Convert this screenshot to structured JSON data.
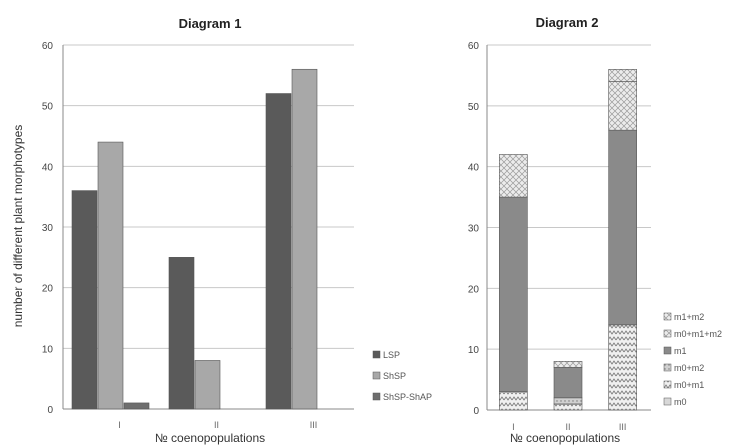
{
  "chart_data": [
    {
      "type": "bar",
      "title": "Diagram 1",
      "xlabel": "№ coenopopulations",
      "ylabel": "number of different plant morphotypes",
      "ylim": [
        0,
        60
      ],
      "yticks": [
        "0",
        "10",
        "20",
        "30",
        "40",
        "50",
        "60"
      ],
      "grid": true,
      "legend_position": "bottom-right",
      "categories": [
        "I",
        "II",
        "III"
      ],
      "series": [
        {
          "name": "LSP",
          "values": [
            36,
            25,
            52
          ],
          "color": "#5a5a5a"
        },
        {
          "name": "ShSP",
          "values": [
            44,
            8,
            56
          ],
          "color": "#a8a8a8"
        },
        {
          "name": "ShSP-ShAP",
          "values": [
            1,
            0,
            0
          ],
          "color": "#6e6e6e"
        }
      ]
    },
    {
      "type": "stacked-bar",
      "title": "Diagram 2",
      "xlabel": "№ coenopopulations",
      "ylim": [
        0,
        60
      ],
      "yticks": [
        "0",
        "10",
        "20",
        "30",
        "40",
        "50",
        "60"
      ],
      "grid": true,
      "legend_position": "right",
      "categories": [
        "I",
        "II",
        "III"
      ],
      "series": [
        {
          "name": "m0",
          "values": [
            0,
            0,
            0
          ],
          "color": "#d8d8d8",
          "pattern": "none"
        },
        {
          "name": "m0+m1",
          "values": [
            3,
            1,
            14
          ],
          "color": "#e0e0e0",
          "pattern": "zigzag"
        },
        {
          "name": "m0+m2",
          "values": [
            0,
            1,
            0
          ],
          "color": "#c8c8c8",
          "pattern": "dots"
        },
        {
          "name": "m1",
          "values": [
            32,
            5,
            32
          ],
          "color": "#8a8a8a",
          "pattern": "none"
        },
        {
          "name": "m0+m1+m2",
          "values": [
            0,
            1,
            8
          ],
          "color": "#dcdcdc",
          "pattern": "crosshatch"
        },
        {
          "name": "m1+m2",
          "values": [
            7,
            0,
            2
          ],
          "color": "#ffffff",
          "pattern": "crosshatch"
        }
      ],
      "legend_order": [
        "m1+m2",
        "m0+m1+m2",
        "m1",
        "m0+m2",
        "m0+m1",
        "m0"
      ]
    }
  ]
}
